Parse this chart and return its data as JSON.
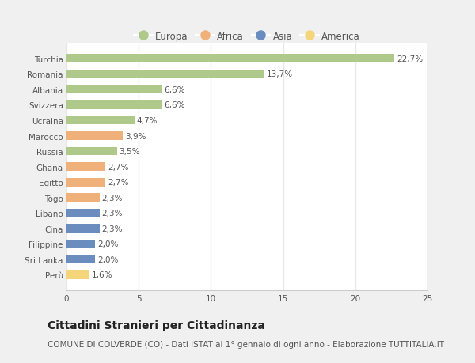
{
  "countries": [
    "Turchia",
    "Romania",
    "Albania",
    "Svizzera",
    "Ucraina",
    "Marocco",
    "Russia",
    "Ghana",
    "Egitto",
    "Togo",
    "Libano",
    "Cina",
    "Filippine",
    "Sri Lanka",
    "Perù"
  ],
  "values": [
    22.7,
    13.7,
    6.6,
    6.6,
    4.7,
    3.9,
    3.5,
    2.7,
    2.7,
    2.3,
    2.3,
    2.3,
    2.0,
    2.0,
    1.6
  ],
  "labels": [
    "22,7%",
    "13,7%",
    "6,6%",
    "6,6%",
    "4,7%",
    "3,9%",
    "3,5%",
    "2,7%",
    "2,7%",
    "2,3%",
    "2,3%",
    "2,3%",
    "2,0%",
    "2,0%",
    "1,6%"
  ],
  "continents": [
    "Europa",
    "Europa",
    "Europa",
    "Europa",
    "Europa",
    "Africa",
    "Europa",
    "Africa",
    "Africa",
    "Africa",
    "Asia",
    "Asia",
    "Asia",
    "Asia",
    "America"
  ],
  "colors": {
    "Europa": "#aec98a",
    "Africa": "#f0b07a",
    "Asia": "#6b8cbf",
    "America": "#f5d57a"
  },
  "xlim": [
    0,
    25
  ],
  "xticks": [
    0,
    5,
    10,
    15,
    20,
    25
  ],
  "title": "Cittadini Stranieri per Cittadinanza",
  "subtitle": "COMUNE DI COLVERDE (CO) - Dati ISTAT al 1° gennaio di ogni anno - Elaborazione TUTTITALIA.IT",
  "fig_bg_color": "#f0f0f0",
  "plot_bg_color": "#ffffff",
  "grid_color": "#e8e8e8",
  "bar_height": 0.55,
  "title_fontsize": 10,
  "subtitle_fontsize": 7.5,
  "label_fontsize": 7.5,
  "tick_fontsize": 7.5,
  "legend_fontsize": 8.5
}
